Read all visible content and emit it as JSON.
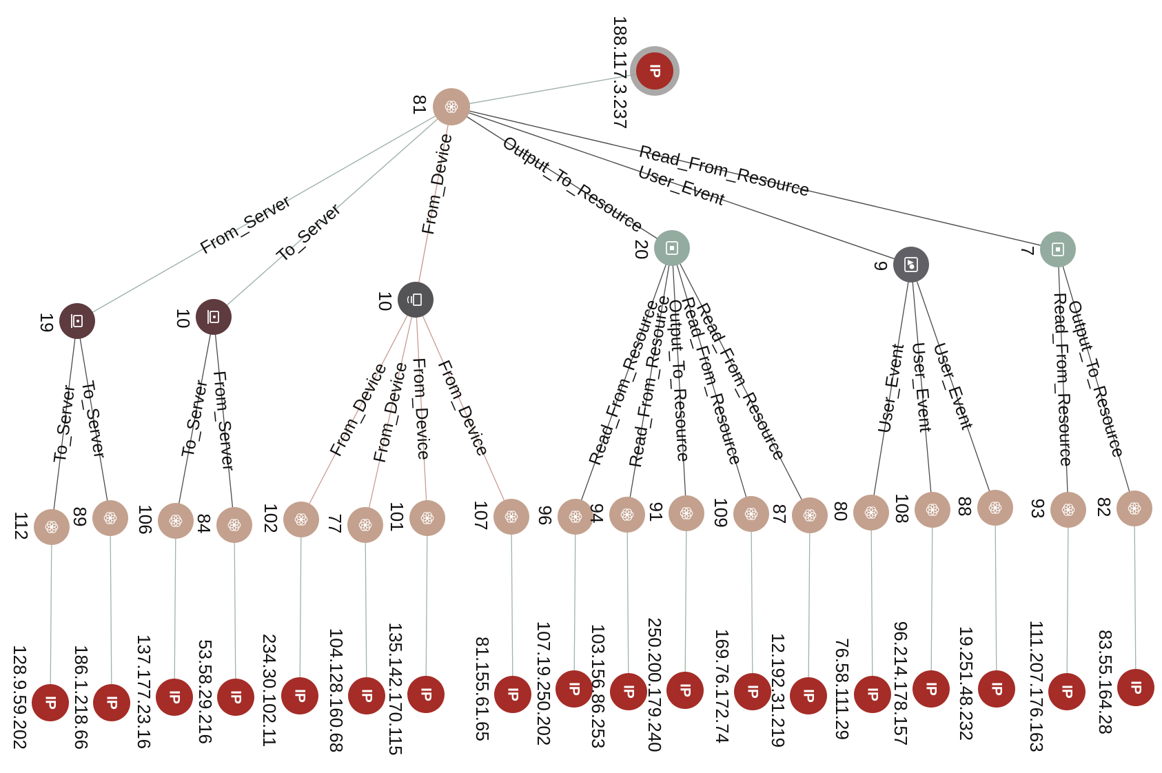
{
  "colors": {
    "ip": "#a52c27",
    "ip_halo": "#9c9a98",
    "hub": "#c3a18e",
    "server": "#5e3b3f",
    "device": "#545356",
    "resource": "#93ac9f",
    "user": "#616066",
    "edge": "#9fb3a8",
    "edge_dark": "#4a4a4a",
    "edge_rose": "#c99c90"
  },
  "root": {
    "ip_label": "188.117.3.237",
    "icon_text": "IP",
    "hub_count": "81"
  },
  "groups": [
    {
      "key": "from_server",
      "edge_label": "From_Server",
      "count": "19",
      "icon": "server-icon"
    },
    {
      "key": "to_server",
      "edge_label": "To_Server",
      "count": "10",
      "icon": "server-icon"
    },
    {
      "key": "from_device",
      "edge_label": "From_Device",
      "count": "10",
      "icon": "device-icon"
    },
    {
      "key": "output_to_resource",
      "edge_label": "Output_To_Resource",
      "count": "20",
      "icon": "resource-icon"
    },
    {
      "key": "user_event",
      "edge_label": "User_Event",
      "count": "9",
      "icon": "user-icon"
    },
    {
      "key": "read_from_resource",
      "edge_label": "Read_From_Resource",
      "count": "7",
      "icon": "resource-icon"
    }
  ],
  "leaves": [
    {
      "group": 0,
      "edge_label": "To_Server",
      "count": "112",
      "ip": "128.9.59.202"
    },
    {
      "group": 0,
      "edge_label": "To_Server",
      "count": "89",
      "ip": "186.1.218.66"
    },
    {
      "group": 1,
      "edge_label": "To_Server",
      "count": "106",
      "ip": "137.177.23.16"
    },
    {
      "group": 1,
      "edge_label": "From_Server",
      "count": "84",
      "ip": "53.58.29.216"
    },
    {
      "group": 2,
      "edge_label": "From_Device",
      "count": "102",
      "ip": "234.30.102.11"
    },
    {
      "group": 2,
      "edge_label": "From_Device",
      "count": "77",
      "ip": "104.128.160.68"
    },
    {
      "group": 2,
      "edge_label": "From_Device",
      "count": "101",
      "ip": "135.142.170.115"
    },
    {
      "group": 2,
      "edge_label": "From_Device",
      "count": "107",
      "ip": "81.155.61.65"
    },
    {
      "group": 3,
      "edge_label": "Read_From_Resource",
      "count": "96",
      "ip": "107.19.250.202"
    },
    {
      "group": 3,
      "edge_label": "Read_From_Resource",
      "count": "94",
      "ip": "103.156.86.253"
    },
    {
      "group": 3,
      "edge_label": "Output_To_Resource",
      "count": "91",
      "ip": "250.200.179.240"
    },
    {
      "group": 3,
      "edge_label": "Read_From_Resource",
      "count": "109",
      "ip": "169.76.172.74"
    },
    {
      "group": 3,
      "edge_label": "Read_From_Resource",
      "count": "87",
      "ip": "12.192.31.219"
    },
    {
      "group": 4,
      "edge_label": "User_Event",
      "count": "80",
      "ip": "76.58.111.29"
    },
    {
      "group": 4,
      "edge_label": "User_Event",
      "count": "108",
      "ip": "96.214.178.157"
    },
    {
      "group": 4,
      "edge_label": "User_Event",
      "count": "88",
      "ip": "19.251.48.232"
    },
    {
      "group": 5,
      "edge_label": "Read_From_Resource",
      "count": "93",
      "ip": "111.207.176.163"
    },
    {
      "group": 5,
      "edge_label": "Output_To_Resource",
      "count": "82",
      "ip": "83.55.164.28"
    }
  ]
}
